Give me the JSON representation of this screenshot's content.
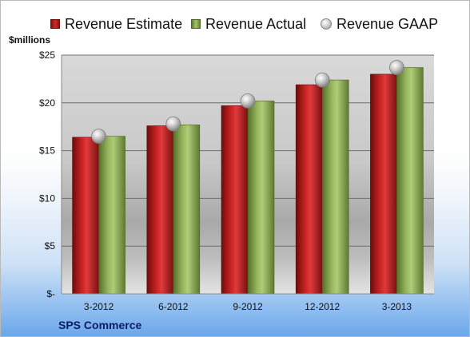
{
  "legend": {
    "estimate": "Revenue Estimate",
    "actual": "Revenue Actual",
    "gaap": "Revenue GAAP"
  },
  "ylabel": "$millions",
  "title": "SPS Commerce",
  "colors": {
    "estimate": "#c0201f",
    "actual": "#8eae55",
    "gaap": "#bdbdbd"
  },
  "chart_data": {
    "type": "bar",
    "title": "SPS Commerce",
    "ylabel": "$millions",
    "xlabel": "",
    "categories": [
      "3-2012",
      "6-2012",
      "9-2012",
      "12-2012",
      "3-2013"
    ],
    "series": [
      {
        "name": "Revenue Estimate",
        "kind": "bar",
        "values": [
          16.4,
          17.6,
          19.7,
          21.9,
          23.0
        ]
      },
      {
        "name": "Revenue Actual",
        "kind": "bar",
        "values": [
          16.5,
          17.7,
          20.2,
          22.4,
          23.7
        ]
      },
      {
        "name": "Revenue GAAP",
        "kind": "marker",
        "values": [
          16.5,
          17.8,
          20.2,
          22.4,
          23.7
        ]
      }
    ],
    "ylim": [
      0,
      25
    ],
    "yticks": [
      0,
      5,
      10,
      15,
      20,
      25
    ],
    "ytick_labels": [
      "$-",
      "$5",
      "$10",
      "$15",
      "$20",
      "$25"
    ],
    "grid": true,
    "legend_position": "top"
  }
}
